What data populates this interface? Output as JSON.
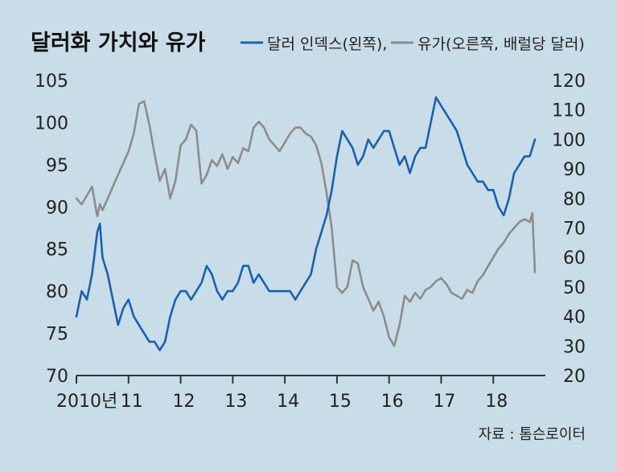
{
  "chart_data": {
    "type": "line",
    "title": "달러화 가치와 유가",
    "source": "자료 : 톰슨로이터",
    "x_labels": [
      "2010년",
      "11",
      "12",
      "13",
      "14",
      "15",
      "16",
      "17",
      "18"
    ],
    "x_range": [
      2010.0,
      2019.0
    ],
    "y_left": {
      "ticks": [
        "105",
        "100",
        "95",
        "90",
        "85",
        "80",
        "75",
        "70"
      ],
      "range": [
        70,
        105
      ]
    },
    "y_right": {
      "ticks": [
        "120",
        "110",
        "100",
        "90",
        "80",
        "70",
        "60",
        "50",
        "40",
        "30",
        "20"
      ],
      "range": [
        20,
        120
      ]
    },
    "grid": false,
    "legend_position": "top-right",
    "series": [
      {
        "name": "달러 인덱스(왼쪽),",
        "axis": "left",
        "color": "#1a5fb4",
        "x": [
          2010.0,
          2010.1,
          2010.2,
          2010.3,
          2010.4,
          2010.45,
          2010.5,
          2010.6,
          2010.7,
          2010.8,
          2010.9,
          2011.0,
          2011.1,
          2011.2,
          2011.3,
          2011.4,
          2011.5,
          2011.6,
          2011.7,
          2011.8,
          2011.9,
          2012.0,
          2012.1,
          2012.2,
          2012.3,
          2012.4,
          2012.5,
          2012.6,
          2012.7,
          2012.8,
          2012.9,
          2013.0,
          2013.1,
          2013.2,
          2013.3,
          2013.4,
          2013.5,
          2013.6,
          2013.7,
          2013.8,
          2013.9,
          2014.0,
          2014.1,
          2014.2,
          2014.3,
          2014.4,
          2014.5,
          2014.6,
          2014.7,
          2014.8,
          2014.9,
          2015.0,
          2015.1,
          2015.2,
          2015.3,
          2015.4,
          2015.5,
          2015.6,
          2015.7,
          2015.8,
          2015.9,
          2016.0,
          2016.1,
          2016.2,
          2016.3,
          2016.4,
          2016.5,
          2016.6,
          2016.7,
          2016.8,
          2016.9,
          2017.0,
          2017.1,
          2017.2,
          2017.3,
          2017.4,
          2017.5,
          2017.6,
          2017.7,
          2017.8,
          2017.9,
          2018.0,
          2018.1,
          2018.2,
          2018.3,
          2018.4,
          2018.5,
          2018.6,
          2018.7,
          2018.75,
          2018.8
        ],
        "y": [
          77,
          80,
          79,
          82,
          87,
          88,
          84,
          82,
          79,
          76,
          78,
          79,
          77,
          76,
          75,
          74,
          74,
          73,
          74,
          77,
          79,
          80,
          80,
          79,
          80,
          81,
          83,
          82,
          80,
          79,
          80,
          80,
          81,
          83,
          83,
          81,
          82,
          81,
          80,
          80,
          80,
          80,
          80,
          79,
          80,
          81,
          82,
          85,
          87,
          89,
          92,
          96,
          99,
          98,
          97,
          95,
          96,
          98,
          97,
          98,
          99,
          99,
          97,
          95,
          96,
          94,
          96,
          97,
          97,
          100,
          103,
          102,
          101,
          100,
          99,
          97,
          95,
          94,
          93,
          93,
          92,
          92,
          90,
          89,
          91,
          94,
          95,
          96,
          96,
          97,
          98
        ]
      },
      {
        "name": "유가(오른쪽, 배럴당 달러)",
        "axis": "right",
        "color": "#8c8c8c",
        "x": [
          2010.0,
          2010.1,
          2010.2,
          2010.3,
          2010.4,
          2010.45,
          2010.5,
          2010.6,
          2010.7,
          2010.8,
          2010.9,
          2011.0,
          2011.1,
          2011.2,
          2011.3,
          2011.4,
          2011.5,
          2011.6,
          2011.7,
          2011.8,
          2011.9,
          2012.0,
          2012.1,
          2012.2,
          2012.3,
          2012.4,
          2012.5,
          2012.6,
          2012.7,
          2012.8,
          2012.9,
          2013.0,
          2013.1,
          2013.2,
          2013.3,
          2013.4,
          2013.5,
          2013.6,
          2013.7,
          2013.8,
          2013.9,
          2014.0,
          2014.1,
          2014.2,
          2014.3,
          2014.4,
          2014.5,
          2014.6,
          2014.7,
          2014.8,
          2014.9,
          2015.0,
          2015.1,
          2015.2,
          2015.3,
          2015.4,
          2015.5,
          2015.6,
          2015.7,
          2015.8,
          2015.9,
          2016.0,
          2016.1,
          2016.2,
          2016.3,
          2016.4,
          2016.5,
          2016.6,
          2016.7,
          2016.8,
          2016.9,
          2017.0,
          2017.1,
          2017.2,
          2017.3,
          2017.4,
          2017.5,
          2017.6,
          2017.7,
          2017.8,
          2017.9,
          2018.0,
          2018.1,
          2018.2,
          2018.3,
          2018.4,
          2018.5,
          2018.6,
          2018.7,
          2018.75,
          2018.8
        ],
        "y": [
          80,
          78,
          81,
          84,
          74,
          78,
          76,
          80,
          84,
          88,
          92,
          96,
          102,
          112,
          113,
          105,
          95,
          86,
          90,
          80,
          86,
          98,
          100,
          105,
          103,
          85,
          88,
          93,
          91,
          95,
          90,
          94,
          92,
          97,
          96,
          104,
          106,
          104,
          100,
          98,
          96,
          99,
          102,
          104,
          104,
          102,
          101,
          98,
          92,
          82,
          70,
          50,
          48,
          50,
          59,
          58,
          50,
          46,
          42,
          45,
          40,
          33,
          30,
          37,
          47,
          45,
          48,
          46,
          49,
          50,
          52,
          53,
          51,
          48,
          47,
          46,
          49,
          48,
          52,
          54,
          57,
          60,
          63,
          65,
          68,
          70,
          72,
          73,
          72,
          75,
          55
        ]
      }
    ]
  }
}
